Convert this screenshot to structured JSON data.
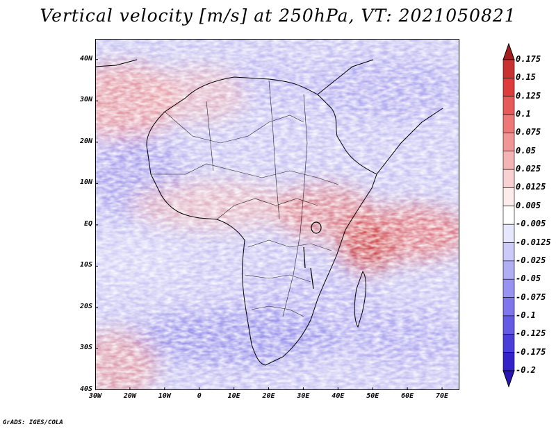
{
  "title": "Vertical velocity [m/s] at 250hPa, VT: 2021050821",
  "credit": "GrADS: IGES/COLA",
  "map": {
    "region": "Africa",
    "variable": "Vertical velocity",
    "units": "m/s",
    "level": "250hPa",
    "valid_time": "2021050821",
    "lon_range": [
      -30,
      75
    ],
    "lat_range": [
      -40,
      45
    ],
    "lat_ticks": [
      {
        "value": 40,
        "label": "40N"
      },
      {
        "value": 30,
        "label": "30N"
      },
      {
        "value": 20,
        "label": "20N"
      },
      {
        "value": 10,
        "label": "10N"
      },
      {
        "value": 0,
        "label": "EQ"
      },
      {
        "value": -10,
        "label": "10S"
      },
      {
        "value": -20,
        "label": "20S"
      },
      {
        "value": -30,
        "label": "30S"
      },
      {
        "value": -40,
        "label": "40S"
      }
    ],
    "lon_ticks": [
      {
        "value": -30,
        "label": "30W"
      },
      {
        "value": -20,
        "label": "20W"
      },
      {
        "value": -10,
        "label": "10W"
      },
      {
        "value": 0,
        "label": "0"
      },
      {
        "value": 10,
        "label": "10E"
      },
      {
        "value": 20,
        "label": "20E"
      },
      {
        "value": 30,
        "label": "30E"
      },
      {
        "value": 40,
        "label": "40E"
      },
      {
        "value": 50,
        "label": "50E"
      },
      {
        "value": 60,
        "label": "60E"
      },
      {
        "value": 70,
        "label": "70E"
      }
    ],
    "colors": {
      "ascent_strong": "#b21e1e",
      "ascent_weak": "#f4c4c4",
      "neutral": "#ffffff",
      "descent_weak": "#c8c8f4",
      "descent_strong": "#2a1ea8",
      "coast": "#000000"
    }
  },
  "colorbar": {
    "levels": [
      {
        "label": "0.175",
        "color": "#b4282a"
      },
      {
        "label": "0.15",
        "color": "#c83232"
      },
      {
        "label": "0.125",
        "color": "#dc3c3c"
      },
      {
        "label": "0.1",
        "color": "#e65a5a"
      },
      {
        "label": "0.075",
        "color": "#ec7878"
      },
      {
        "label": "0.05",
        "color": "#f09696"
      },
      {
        "label": "0.025",
        "color": "#f4b4b4"
      },
      {
        "label": "0.0125",
        "color": "#f8d2d2"
      },
      {
        "label": "0.005",
        "color": "#fcecec"
      },
      {
        "label": "-0.005",
        "color": "#ffffff"
      },
      {
        "label": "-0.0125",
        "color": "#e6e6fc"
      },
      {
        "label": "-0.025",
        "color": "#cccaf8"
      },
      {
        "label": "-0.05",
        "color": "#b2aef4"
      },
      {
        "label": "-0.075",
        "color": "#9892f0"
      },
      {
        "label": "-0.1",
        "color": "#7e76ea"
      },
      {
        "label": "-0.125",
        "color": "#645ae4"
      },
      {
        "label": "-0.175",
        "color": "#4a3ed8"
      },
      {
        "label": "-0.2",
        "color": "#3322c8"
      }
    ],
    "top_arrow_color": "#a01e1e",
    "bottom_arrow_color": "#2a14b4"
  }
}
